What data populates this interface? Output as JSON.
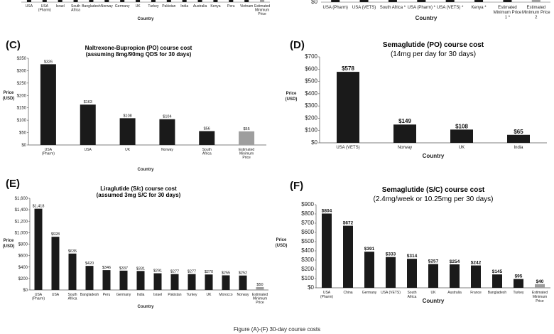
{
  "top_strip": {
    "left_categories": [
      "USA",
      "USA (Pharm)",
      "Israel",
      "South Africa",
      "Bangladesh",
      "Norway",
      "Germany",
      "UK",
      "Turkey",
      "Pakistan",
      "India",
      "Australia",
      "Kenya",
      "Peru",
      "Vietnam",
      "Estimated Minimum Price"
    ],
    "right_zero": "$0",
    "right_categories": [
      "USA (Pharm)",
      "USA (VETS)",
      "South Africa *",
      "USA (Pharm) *",
      "USA (VETS) *",
      "Kenya *",
      "Estimated Minimum Price 1 *",
      "Estimated Minimum Price 2"
    ],
    "left_xlabel": "Country",
    "right_xlabel": "Country"
  },
  "caption": "Figure (A)-(F) 30-day course costs",
  "colors": {
    "bar": "#1a1a1a",
    "min_bar": "#9e9e9e",
    "axis": "#555555"
  },
  "chart_data": [
    {
      "panel": "(C)",
      "type": "bar",
      "title": "Naltrexone-Bupropion (PO) course cost",
      "subtitle": "(assuming 8mg/90mg QDS for 30 days)",
      "xlabel": "Country",
      "ylabel": "Price (USD)",
      "ylim": [
        0,
        350
      ],
      "yticks": [
        "$0",
        "$50",
        "$100",
        "$150",
        "$200",
        "$250",
        "$300",
        "$350"
      ],
      "categories": [
        "USA (Pharm)",
        "USA",
        "UK",
        "Norway",
        "South Africa",
        "Estimated Minimum Price"
      ],
      "values": [
        326,
        163,
        108,
        104,
        56,
        55
      ],
      "labels": [
        "$326",
        "$163",
        "$108",
        "$104",
        "$56",
        "$55"
      ],
      "highlight_last": true
    },
    {
      "panel": "(D)",
      "type": "bar",
      "title": "Semaglutide (PO) course cost",
      "subtitle": "(14mg per day for 30 days)",
      "xlabel": "Country",
      "ylabel": "Price (USD)",
      "ylim": [
        0,
        700
      ],
      "yticks": [
        "$0",
        "$100",
        "$200",
        "$300",
        "$400",
        "$500",
        "$600",
        "$700"
      ],
      "categories": [
        "USA (VETS)",
        "Norway",
        "UK",
        "India"
      ],
      "values": [
        578,
        149,
        108,
        65
      ],
      "labels": [
        "$578",
        "$149",
        "$108",
        "$65"
      ],
      "highlight_last": false
    },
    {
      "panel": "(E)",
      "type": "bar",
      "title": "Liraglutide (S/c) course cost",
      "subtitle": "(assumed 3mg S/C for 30 days)",
      "xlabel": "Country",
      "ylabel": "Price (USD)",
      "ylim": [
        0,
        1600
      ],
      "yticks": [
        "$0",
        "$200",
        "$400",
        "$600",
        "$800",
        "$1,000",
        "$1,200",
        "$1,400",
        "$1,600"
      ],
      "categories": [
        "USA (Pharm)",
        "USA",
        "South Africa",
        "Bangladesh",
        "Peru",
        "Germany",
        "India",
        "Israel",
        "Pakistan",
        "Turkey",
        "UK",
        "Morocco",
        "Norway",
        "Estimated Minimum Price"
      ],
      "values": [
        1418,
        928,
        635,
        420,
        346,
        337,
        331,
        291,
        277,
        277,
        270,
        255,
        252,
        50
      ],
      "labels": [
        "$1,418",
        "$928",
        "$635",
        "$420",
        "$346",
        "$337",
        "$331",
        "$291",
        "$277",
        "$277",
        "$270",
        "$255",
        "$252",
        "$50"
      ],
      "highlight_last": true
    },
    {
      "panel": "(F)",
      "type": "bar",
      "title": "Semaglutide (S/C) course cost",
      "subtitle": "(2.4mg/week or 10.25mg per 30 days)",
      "xlabel": "Country",
      "ylabel": "Price (USD)",
      "ylim": [
        0,
        900
      ],
      "yticks": [
        "$0",
        "$100",
        "$200",
        "$300",
        "$400",
        "$500",
        "$600",
        "$700",
        "$800",
        "$900"
      ],
      "categories": [
        "USA (Pharm)",
        "China",
        "Germany",
        "USA (VETS)",
        "South Africa",
        "UK",
        "Australia",
        "France",
        "Bangladesh",
        "Turkey",
        "Estimated Minimum Price"
      ],
      "values": [
        804,
        672,
        391,
        333,
        314,
        257,
        254,
        242,
        145,
        95,
        40
      ],
      "labels": [
        "$804",
        "$672",
        "$391",
        "$333",
        "$314",
        "$257",
        "$254",
        "$242",
        "$145",
        "$95",
        "$40"
      ],
      "highlight_last": true
    }
  ]
}
